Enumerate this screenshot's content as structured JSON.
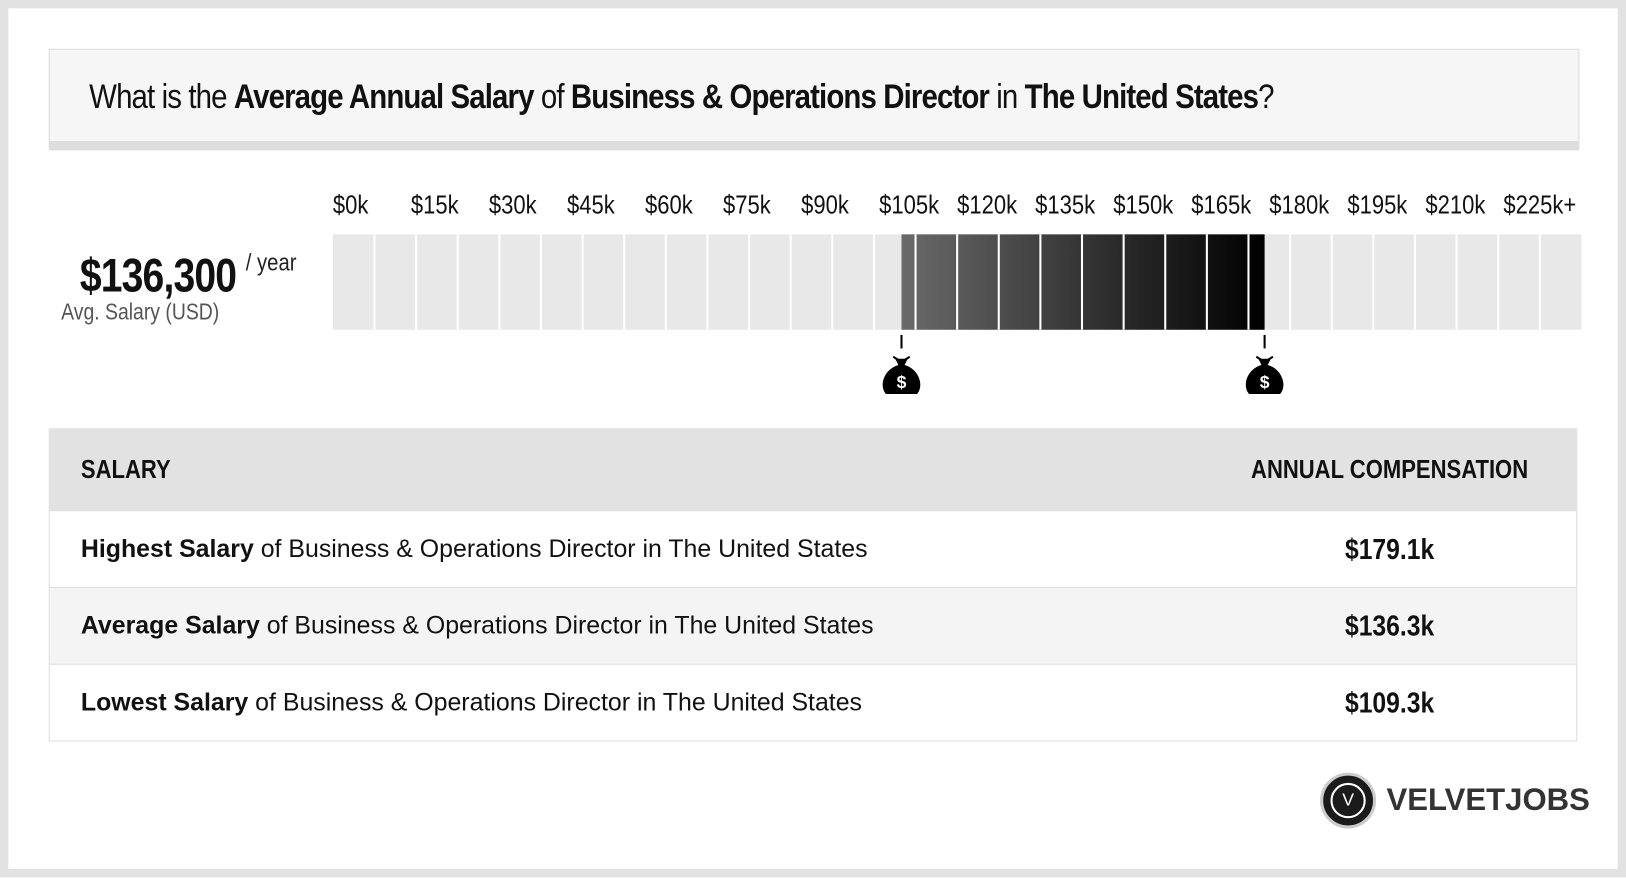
{
  "header": {
    "title_parts": [
      "What is the ",
      "Average Annual Salary",
      " of ",
      "Business & Operations Director",
      " in ",
      "The United States",
      "?"
    ]
  },
  "summary": {
    "amount": "$136,300",
    "unit": "/ year",
    "caption": "Avg. Salary (USD)"
  },
  "scale": {
    "lim": [
      0,
      240
    ],
    "ticks": [
      {
        "value": 0,
        "label": "$0k"
      },
      {
        "value": 15,
        "label": "$15k"
      },
      {
        "value": 30,
        "label": "$30k"
      },
      {
        "value": 45,
        "label": "$45k"
      },
      {
        "value": 60,
        "label": "$60k"
      },
      {
        "value": 75,
        "label": "$75k"
      },
      {
        "value": 90,
        "label": "$90k"
      },
      {
        "value": 105,
        "label": "$105k"
      },
      {
        "value": 120,
        "label": "$120k"
      },
      {
        "value": 135,
        "label": "$135k"
      },
      {
        "value": 150,
        "label": "$150k"
      },
      {
        "value": 165,
        "label": "$165k"
      },
      {
        "value": 180,
        "label": "$180k"
      },
      {
        "value": 195,
        "label": "$195k"
      },
      {
        "value": 210,
        "label": "$210k"
      },
      {
        "value": 225,
        "label": "$225k+"
      }
    ],
    "range": {
      "low": 109.3,
      "high": 179.1
    }
  },
  "table": {
    "header": [
      "SALARY",
      "ANNUAL COMPENSATION"
    ],
    "rows": [
      {
        "bold": "Highest Salary",
        "rest": " of Business & Operations Director in The United States",
        "value": "$179.1k"
      },
      {
        "bold": "Average Salary",
        "rest": " of Business & Operations Director in The United States",
        "value": "$136.3k"
      },
      {
        "bold": "Lowest Salary",
        "rest": " of Business & Operations Director in The United States",
        "value": "$109.3k"
      }
    ]
  },
  "logo": {
    "icon": "V",
    "text": "VELVETJOBS"
  }
}
